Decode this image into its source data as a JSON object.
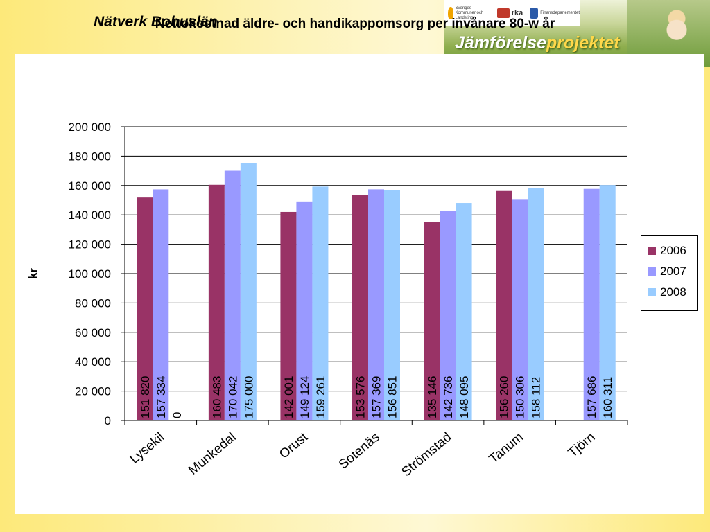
{
  "header": {
    "title": "Nätverk Bohuslän"
  },
  "banner": {
    "word_main": "Jämförelse",
    "word_accent": "projektet",
    "logos": [
      {
        "name": "skl",
        "text": "Sveriges Kommuner och Landsting",
        "color": "#f0a400"
      },
      {
        "name": "rka",
        "text": "rka",
        "color": "#c0392b"
      },
      {
        "name": "finans",
        "text": "Finansdepartementet",
        "color": "#2b5aa8"
      }
    ]
  },
  "chart_data": {
    "type": "bar",
    "title": "Nettokostnad äldre- och handikappomsorg per invånare 80-w år",
    "xlabel": "",
    "ylabel": "kr",
    "ylim": [
      0,
      200000
    ],
    "yticks": [
      "0",
      "20 000",
      "40 000",
      "60 000",
      "80 000",
      "100 000",
      "120 000",
      "140 000",
      "160 000",
      "180 000",
      "200 000"
    ],
    "grid": true,
    "legend_position": "right",
    "categories": [
      "Lysekil",
      "Munkedal",
      "Orust",
      "Sotenäs",
      "Strömstad",
      "Tanum",
      "Tjörn"
    ],
    "series": [
      {
        "name": "2006",
        "color": "#993366",
        "values": [
          151820,
          160483,
          142001,
          153576,
          135146,
          156260,
          null
        ],
        "labels": [
          "151 820",
          "160 483",
          "142 001",
          "153 576",
          "135 146",
          "156 260",
          ""
        ]
      },
      {
        "name": "2007",
        "color": "#9999ff",
        "values": [
          157334,
          170042,
          149124,
          157369,
          142736,
          150306,
          157686
        ],
        "labels": [
          "157 334",
          "170 042",
          "149 124",
          "157 369",
          "142 736",
          "150 306",
          "157 686"
        ]
      },
      {
        "name": "2008",
        "color": "#99ccff",
        "values": [
          0,
          175000,
          159261,
          156851,
          148095,
          158112,
          160311
        ],
        "labels": [
          "0",
          "175 000",
          "159 261",
          "156 851",
          "148 095",
          "158 112",
          "160 311"
        ]
      }
    ]
  }
}
